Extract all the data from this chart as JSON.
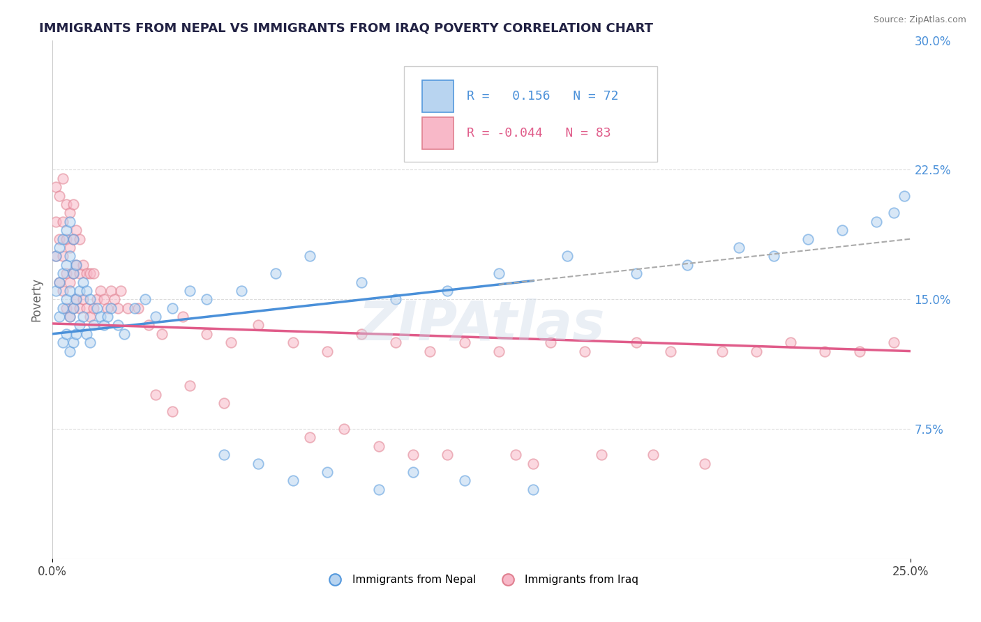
{
  "title": "IMMIGRANTS FROM NEPAL VS IMMIGRANTS FROM IRAQ POVERTY CORRELATION CHART",
  "source": "Source: ZipAtlas.com",
  "ylabel": "Poverty",
  "watermark": "ZIPAtlas",
  "xlim": [
    0.0,
    0.25
  ],
  "ylim": [
    0.0,
    0.3
  ],
  "ytick_labels_right": [
    "30.0%",
    "22.5%",
    "15.0%",
    "7.5%"
  ],
  "ytick_positions_right": [
    0.3,
    0.225,
    0.15,
    0.075
  ],
  "nepal_R": 0.156,
  "nepal_N": 72,
  "iraq_R": -0.044,
  "iraq_N": 83,
  "nepal_line_color": "#4a90d9",
  "iraq_line_color": "#e05c8a",
  "nepal_scatter_face": "#b8d4f0",
  "nepal_scatter_edge": "#5599dd",
  "iraq_scatter_face": "#f8b8c8",
  "iraq_scatter_edge": "#e08090",
  "dashed_line_color": "#aaaaaa",
  "grid_color": "#dddddd",
  "right_axis_color": "#4a90d9",
  "title_color": "#222244",
  "legend_nepal_label": "Immigrants from Nepal",
  "legend_iraq_label": "Immigrants from Iraq",
  "nepal_x": [
    0.001,
    0.001,
    0.002,
    0.002,
    0.002,
    0.003,
    0.003,
    0.003,
    0.003,
    0.004,
    0.004,
    0.004,
    0.004,
    0.005,
    0.005,
    0.005,
    0.005,
    0.005,
    0.006,
    0.006,
    0.006,
    0.006,
    0.007,
    0.007,
    0.007,
    0.008,
    0.008,
    0.009,
    0.009,
    0.01,
    0.01,
    0.011,
    0.011,
    0.012,
    0.013,
    0.014,
    0.015,
    0.016,
    0.017,
    0.019,
    0.021,
    0.024,
    0.027,
    0.03,
    0.035,
    0.04,
    0.045,
    0.055,
    0.065,
    0.075,
    0.09,
    0.1,
    0.115,
    0.13,
    0.15,
    0.17,
    0.185,
    0.2,
    0.21,
    0.22,
    0.23,
    0.24,
    0.245,
    0.248,
    0.05,
    0.06,
    0.07,
    0.08,
    0.095,
    0.105,
    0.12,
    0.14
  ],
  "nepal_y": [
    0.155,
    0.175,
    0.14,
    0.16,
    0.18,
    0.125,
    0.145,
    0.165,
    0.185,
    0.13,
    0.15,
    0.17,
    0.19,
    0.12,
    0.14,
    0.155,
    0.175,
    0.195,
    0.125,
    0.145,
    0.165,
    0.185,
    0.13,
    0.15,
    0.17,
    0.135,
    0.155,
    0.14,
    0.16,
    0.13,
    0.155,
    0.125,
    0.15,
    0.135,
    0.145,
    0.14,
    0.135,
    0.14,
    0.145,
    0.135,
    0.13,
    0.145,
    0.15,
    0.14,
    0.145,
    0.155,
    0.15,
    0.155,
    0.165,
    0.175,
    0.16,
    0.15,
    0.155,
    0.165,
    0.175,
    0.165,
    0.17,
    0.18,
    0.175,
    0.185,
    0.19,
    0.195,
    0.2,
    0.21,
    0.06,
    0.055,
    0.045,
    0.05,
    0.04,
    0.05,
    0.045,
    0.04
  ],
  "iraq_x": [
    0.001,
    0.001,
    0.001,
    0.002,
    0.002,
    0.002,
    0.003,
    0.003,
    0.003,
    0.003,
    0.004,
    0.004,
    0.004,
    0.004,
    0.005,
    0.005,
    0.005,
    0.005,
    0.006,
    0.006,
    0.006,
    0.006,
    0.007,
    0.007,
    0.007,
    0.008,
    0.008,
    0.008,
    0.009,
    0.009,
    0.01,
    0.01,
    0.011,
    0.011,
    0.012,
    0.012,
    0.013,
    0.014,
    0.015,
    0.016,
    0.017,
    0.018,
    0.019,
    0.02,
    0.022,
    0.025,
    0.028,
    0.032,
    0.038,
    0.045,
    0.052,
    0.06,
    0.07,
    0.08,
    0.09,
    0.1,
    0.11,
    0.12,
    0.13,
    0.145,
    0.155,
    0.17,
    0.18,
    0.195,
    0.205,
    0.215,
    0.225,
    0.235,
    0.245,
    0.05,
    0.04,
    0.03,
    0.035,
    0.075,
    0.085,
    0.095,
    0.105,
    0.115,
    0.135,
    0.14,
    0.16,
    0.175,
    0.19
  ],
  "iraq_y": [
    0.175,
    0.195,
    0.215,
    0.16,
    0.185,
    0.21,
    0.155,
    0.175,
    0.195,
    0.22,
    0.145,
    0.165,
    0.185,
    0.205,
    0.14,
    0.16,
    0.18,
    0.2,
    0.145,
    0.165,
    0.185,
    0.205,
    0.15,
    0.17,
    0.19,
    0.145,
    0.165,
    0.185,
    0.15,
    0.17,
    0.145,
    0.165,
    0.14,
    0.165,
    0.145,
    0.165,
    0.15,
    0.155,
    0.15,
    0.145,
    0.155,
    0.15,
    0.145,
    0.155,
    0.145,
    0.145,
    0.135,
    0.13,
    0.14,
    0.13,
    0.125,
    0.135,
    0.125,
    0.12,
    0.13,
    0.125,
    0.12,
    0.125,
    0.12,
    0.125,
    0.12,
    0.125,
    0.12,
    0.12,
    0.12,
    0.125,
    0.12,
    0.12,
    0.125,
    0.09,
    0.1,
    0.095,
    0.085,
    0.07,
    0.075,
    0.065,
    0.06,
    0.06,
    0.06,
    0.055,
    0.06,
    0.06,
    0.055
  ]
}
